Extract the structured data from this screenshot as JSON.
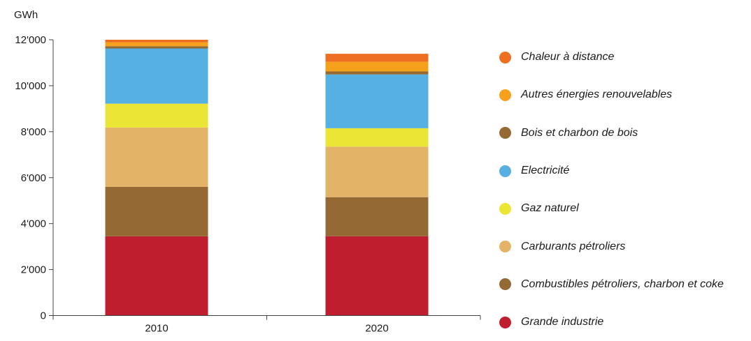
{
  "chart_data": {
    "type": "bar",
    "stacked": true,
    "ylabel": "GWh",
    "xlabel": "",
    "ylim": [
      0,
      12000
    ],
    "yticks": [
      0,
      2000,
      4000,
      6000,
      8000,
      10000,
      12000
    ],
    "ytick_labels": [
      "0",
      "2'000",
      "4'000",
      "6'000",
      "8'000",
      "10'000",
      "12'000"
    ],
    "categories": [
      "2010",
      "2020"
    ],
    "legend_position": "right",
    "grid": false,
    "series": [
      {
        "name": "Grande industrie",
        "color": "#bf1e2e",
        "values": [
          3450,
          3450
        ]
      },
      {
        "name": "Combustibles pétroliers, charbon et coke",
        "color": "#946934",
        "values": [
          2150,
          1700
        ]
      },
      {
        "name": "Carburants pétroliers",
        "color": "#e3b467",
        "values": [
          2580,
          2200
        ]
      },
      {
        "name": "Gaz naturel",
        "color": "#ebe535",
        "values": [
          1040,
          800
        ]
      },
      {
        "name": "Electricité",
        "color": "#56b0e2",
        "values": [
          2400,
          2340
        ]
      },
      {
        "name": "Bois et charbon de bois",
        "color": "#946934",
        "values": [
          100,
          130
        ]
      },
      {
        "name": "Autres énergies renouvelables",
        "color": "#f5a11b",
        "values": [
          170,
          420
        ]
      },
      {
        "name": "Chaleur à distance",
        "color": "#ee6f22",
        "values": [
          110,
          350
        ]
      }
    ]
  }
}
